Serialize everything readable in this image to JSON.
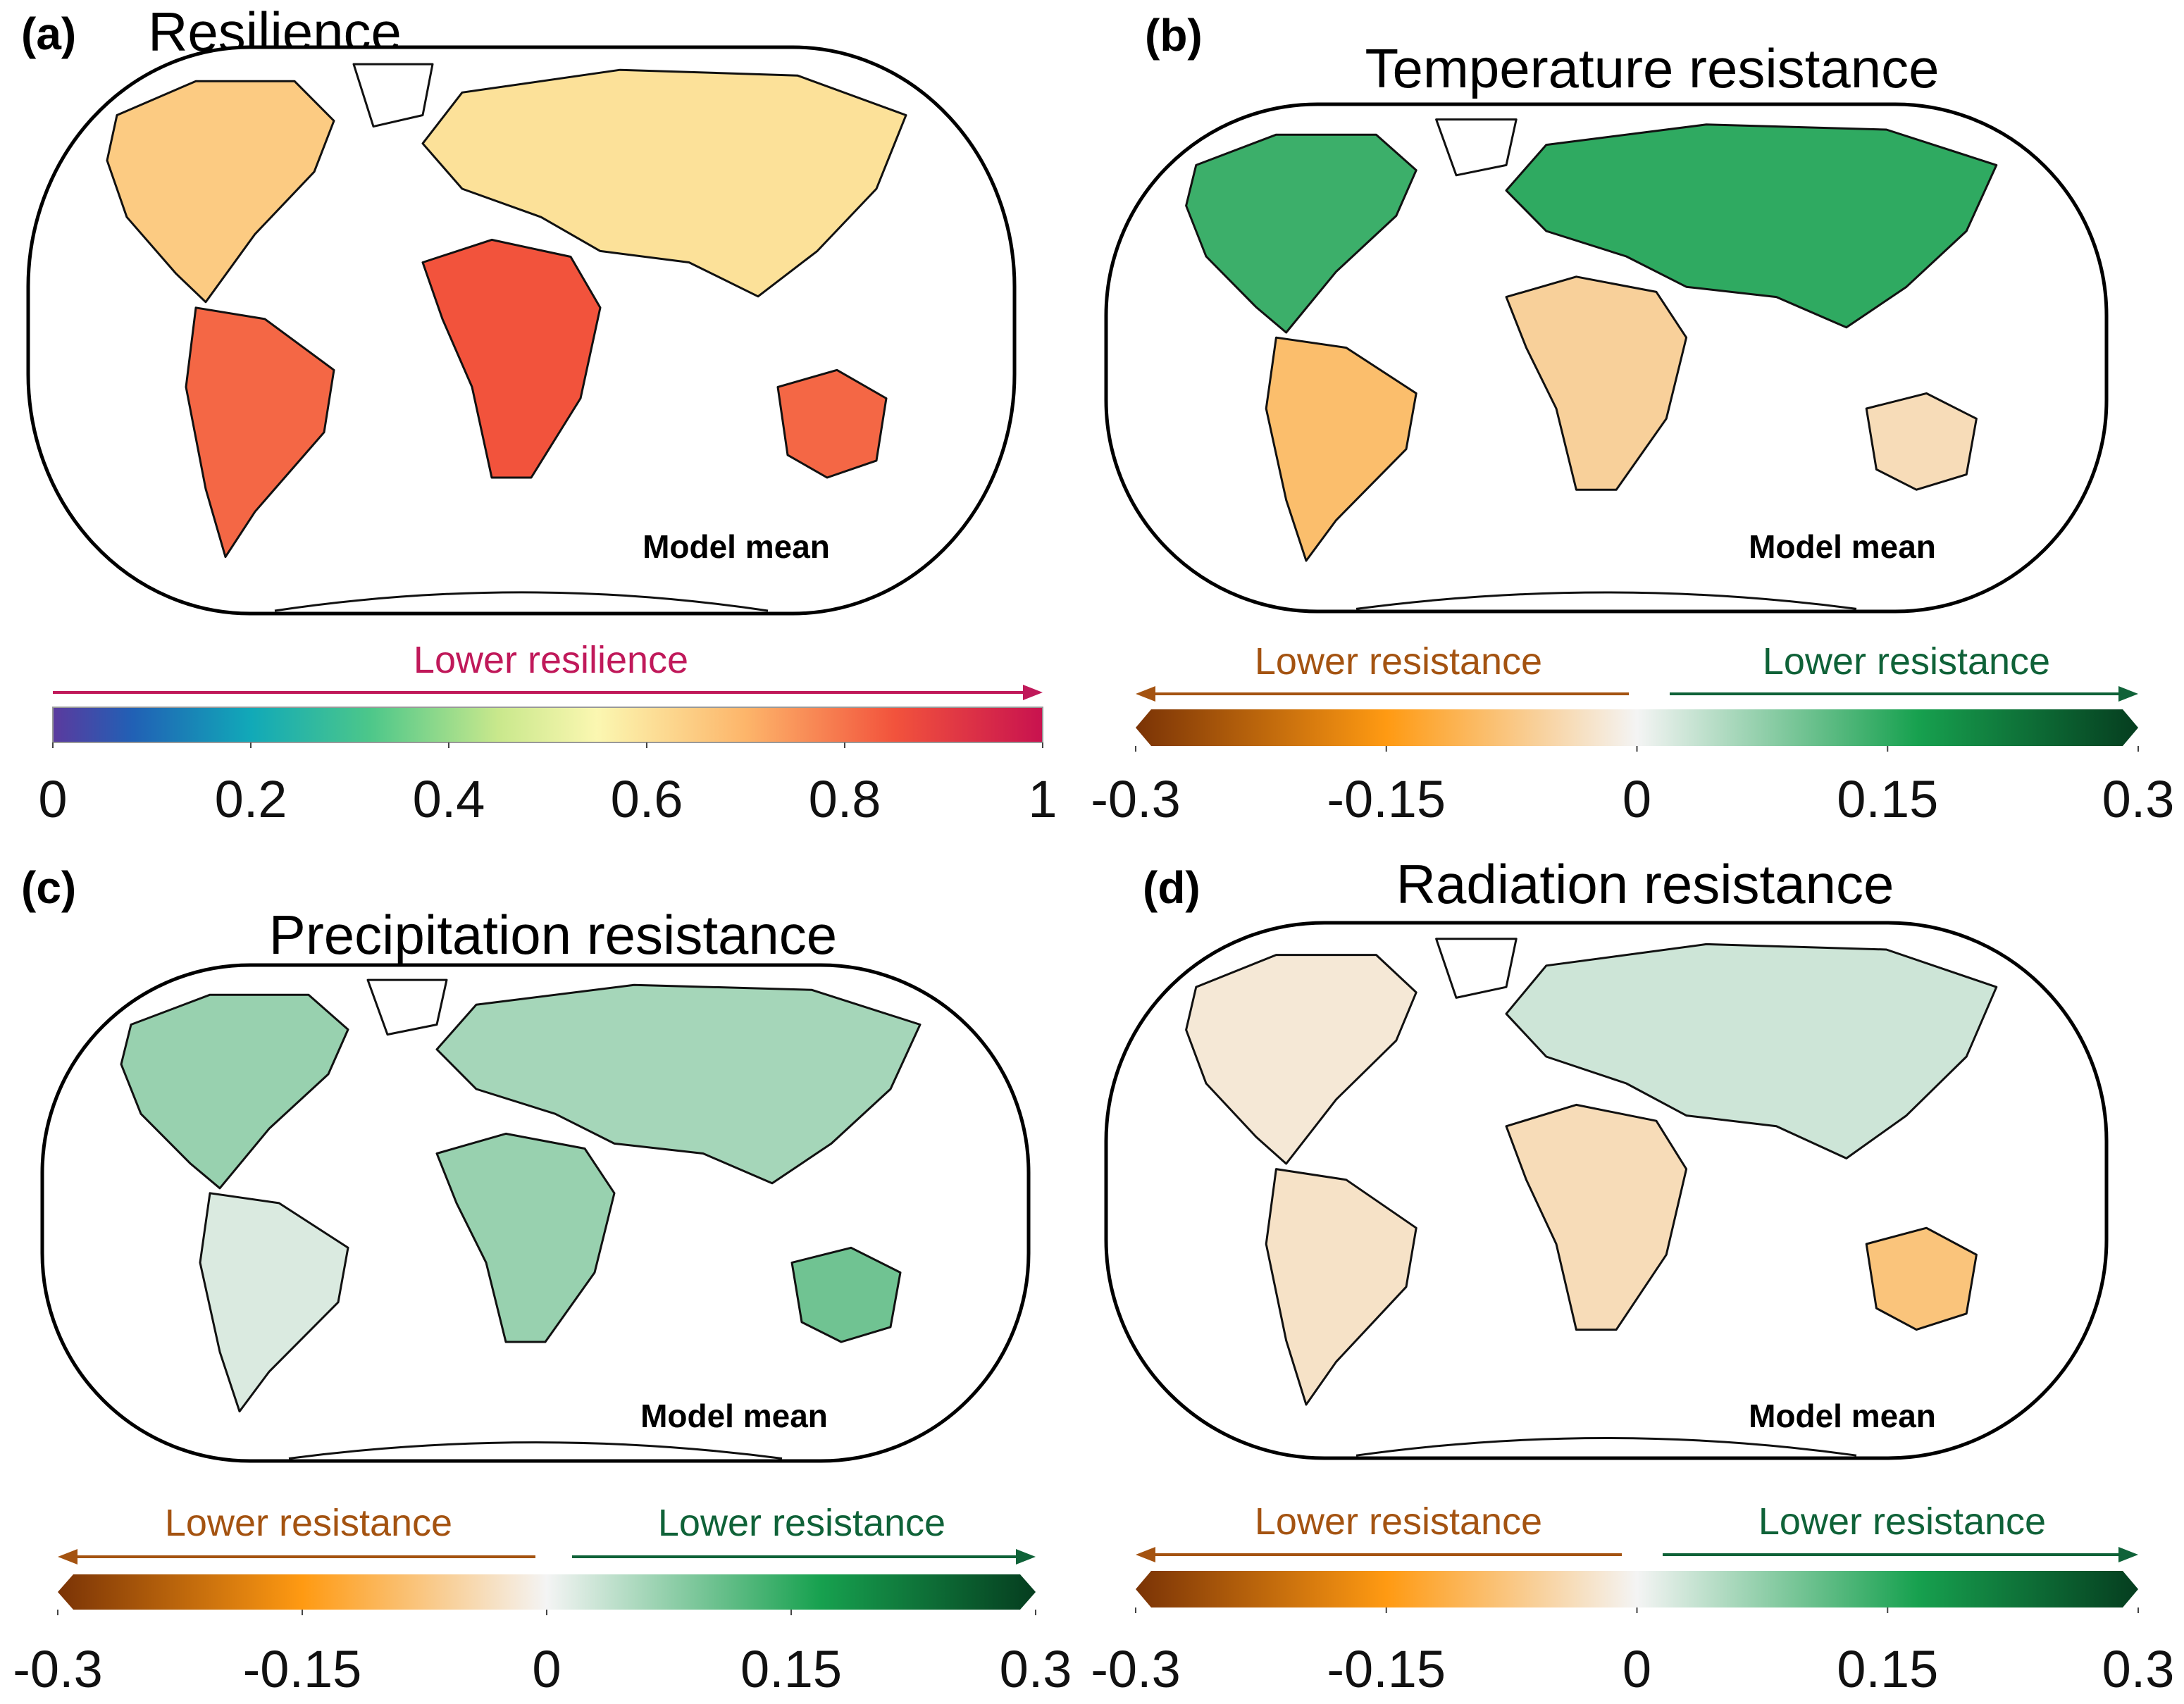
{
  "chart_data": [
    {
      "type": "heatmap",
      "panel_letter": "(a)",
      "title": "Resilience",
      "annotation": "Model mean",
      "scale_label": "Lower resilience",
      "colorbar": "sequential",
      "range": [
        0,
        1
      ],
      "ticks": [
        0,
        0.2,
        0.4,
        0.6,
        0.8,
        1
      ],
      "tick_labels": [
        "0",
        "0.2",
        "0.4",
        "0.6",
        "0.8",
        "1"
      ],
      "label_color": "#c0195a",
      "regions": [
        {
          "name": "north-america",
          "value": 0.65
        },
        {
          "name": "south-america",
          "value": 0.82
        },
        {
          "name": "europe-asia",
          "value": 0.6
        },
        {
          "name": "africa",
          "value": 0.85
        },
        {
          "name": "australia",
          "value": 0.82
        },
        {
          "name": "greenland",
          "value": null
        }
      ]
    },
    {
      "type": "heatmap",
      "panel_letter": "(b)",
      "title": "Temperature resistance",
      "annotation": "Model mean",
      "scale_label_left": "Lower resistance",
      "scale_label_right": "Lower resistance",
      "colorbar": "diverging",
      "range": [
        -0.3,
        0.3
      ],
      "ticks": [
        -0.3,
        -0.15,
        0,
        0.15,
        0.3
      ],
      "tick_labels": [
        "-0.3",
        "-0.15",
        "0",
        "0.15",
        "0.3"
      ],
      "label_color_left": "#a45311",
      "label_color_right": "#0f6238",
      "regions": [
        {
          "name": "north-america",
          "value": 0.14
        },
        {
          "name": "south-america",
          "value": -0.09
        },
        {
          "name": "europe-asia",
          "value": 0.15
        },
        {
          "name": "africa",
          "value": -0.06
        },
        {
          "name": "australia",
          "value": -0.04
        },
        {
          "name": "greenland",
          "value": null
        }
      ]
    },
    {
      "type": "heatmap",
      "panel_letter": "(c)",
      "title": "Precipitation resistance",
      "annotation": "Model mean",
      "scale_label_left": "Lower resistance",
      "scale_label_right": "Lower resistance",
      "colorbar": "diverging",
      "range": [
        -0.3,
        0.3
      ],
      "ticks": [
        -0.3,
        -0.15,
        0,
        0.15,
        0.3
      ],
      "tick_labels": [
        "-0.3",
        "-0.15",
        "0",
        "0.15",
        "0.3"
      ],
      "label_color_left": "#a45311",
      "label_color_right": "#0f6238",
      "regions": [
        {
          "name": "north-america",
          "value": 0.07
        },
        {
          "name": "south-america",
          "value": 0.02
        },
        {
          "name": "europe-asia",
          "value": 0.06
        },
        {
          "name": "africa",
          "value": 0.07
        },
        {
          "name": "australia",
          "value": 0.1
        },
        {
          "name": "greenland",
          "value": null
        }
      ]
    },
    {
      "type": "heatmap",
      "panel_letter": "(d)",
      "title": "Radiation resistance",
      "annotation": "Model mean",
      "scale_label_left": "Lower resistance",
      "scale_label_right": "Lower resistance",
      "colorbar": "diverging",
      "range": [
        -0.3,
        0.3
      ],
      "ticks": [
        -0.3,
        -0.15,
        0,
        0.15,
        0.3
      ],
      "tick_labels": [
        "-0.3",
        "-0.15",
        "0",
        "0.15",
        "0.3"
      ],
      "label_color_left": "#a45311",
      "label_color_right": "#0f6238",
      "regions": [
        {
          "name": "north-america",
          "value": -0.02
        },
        {
          "name": "south-america",
          "value": -0.03
        },
        {
          "name": "europe-asia",
          "value": 0.03
        },
        {
          "name": "africa",
          "value": -0.04
        },
        {
          "name": "australia",
          "value": -0.08
        },
        {
          "name": "greenland",
          "value": null
        }
      ]
    }
  ]
}
